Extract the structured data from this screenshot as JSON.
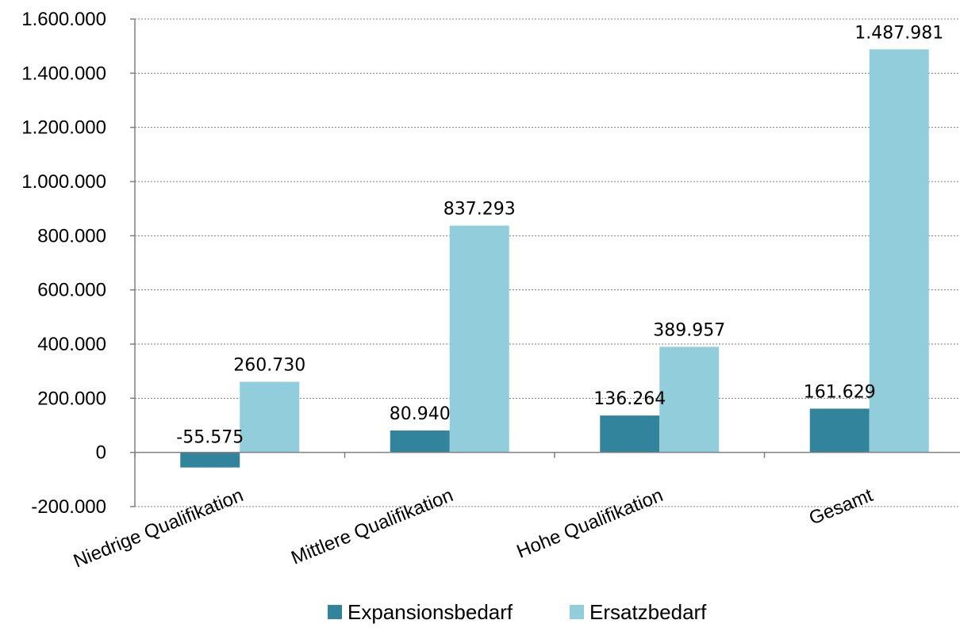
{
  "chart_data": {
    "type": "bar",
    "title": "",
    "xlabel": "",
    "ylabel": "",
    "categories": [
      "Niedrige Qualifikation",
      "Mittlere Qualifikation",
      "Hohe Qualifikation",
      "Gesamt"
    ],
    "series": [
      {
        "name": "Expansionsbedarf",
        "color": "#31849B",
        "values": [
          -55575,
          80940,
          136264,
          161629
        ],
        "labels": [
          "-55.575",
          "80.940",
          "136.264",
          "161.629"
        ]
      },
      {
        "name": "Ersatzbedarf",
        "color": "#92CDDC",
        "values": [
          260730,
          837293,
          389957,
          1487981
        ],
        "labels": [
          "260.730",
          "837.293",
          "389.957",
          "1.487.981"
        ]
      }
    ],
    "ylim": [
      -200000,
      1600000
    ],
    "yticks": [
      -200000,
      0,
      200000,
      400000,
      600000,
      800000,
      1000000,
      1200000,
      1400000,
      1600000
    ],
    "ytick_labels": [
      "-200.000",
      "0",
      "200.000",
      "400.000",
      "600.000",
      "800.000",
      "1.000.000",
      "1.200.000",
      "1.400.000",
      "1.600.000"
    ],
    "grid": true,
    "legend": "bottom"
  }
}
